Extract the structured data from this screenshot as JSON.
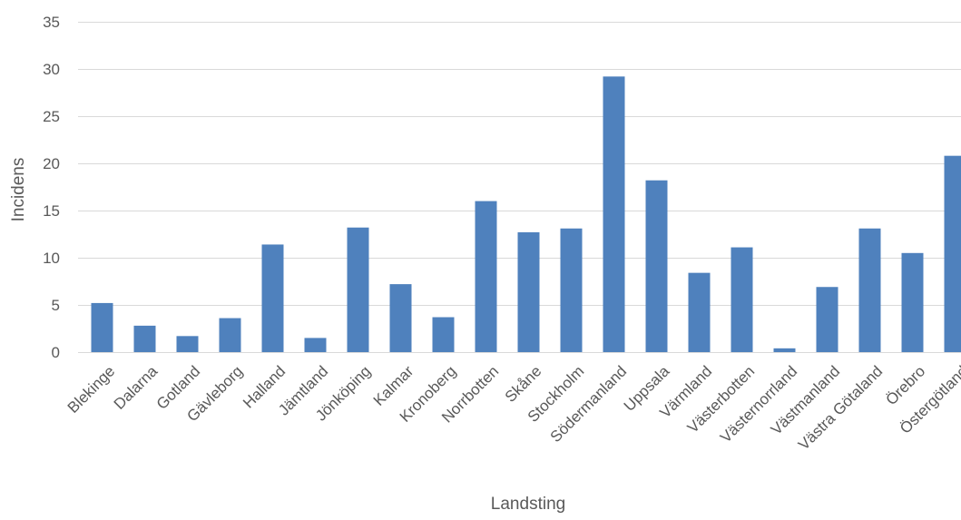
{
  "chart_data": {
    "type": "bar",
    "xlabel": "Landsting",
    "ylabel": "Incidens",
    "ylim": [
      0,
      35
    ],
    "yticks": [
      0,
      5,
      10,
      15,
      20,
      25,
      30,
      35
    ],
    "grid": true,
    "legend": "none",
    "bar_color": "#4f81bd",
    "categories": [
      "Blekinge",
      "Dalarna",
      "Gotland",
      "Gävleborg",
      "Halland",
      "Jämtland",
      "Jönköping",
      "Kalmar",
      "Kronoberg",
      "Norrbotten",
      "Skåne",
      "Stockholm",
      "Södermanland",
      "Uppsala",
      "Värmland",
      "Västerbotten",
      "Västernorrland",
      "Västmanland",
      "Västra Götaland",
      "Örebro",
      "Östergötland"
    ],
    "values": [
      5.2,
      2.8,
      1.7,
      3.6,
      11.4,
      1.5,
      13.2,
      7.2,
      3.7,
      16.0,
      12.7,
      13.1,
      29.2,
      18.2,
      8.4,
      11.1,
      0.4,
      6.9,
      13.1,
      10.5,
      20.8
    ]
  }
}
